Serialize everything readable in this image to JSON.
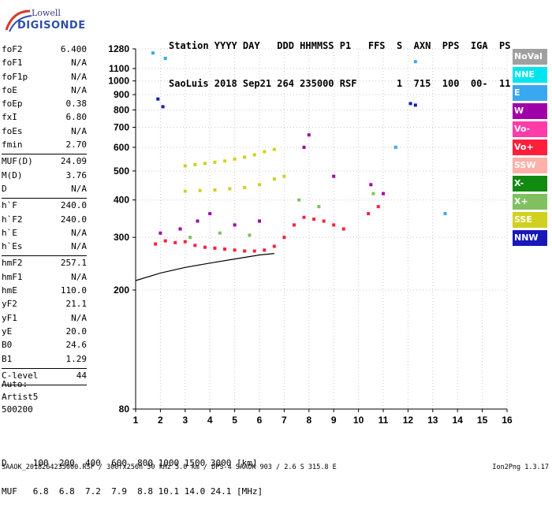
{
  "logo": {
    "line1": "Lowell",
    "line2": "DIGISONDE"
  },
  "header": {
    "line1": "Station YYYY DAY   DDD HHMMSS P1   FFS  S  AXN  PPS  IGA  PS",
    "line2": "SaoLuis 2018 Sep21 264 235000 RSF       1  715  100  00-  11"
  },
  "params": [
    {
      "k": "foF2",
      "v": "6.400"
    },
    {
      "k": "foF1",
      "v": "N/A"
    },
    {
      "k": "foF1p",
      "v": "N/A"
    },
    {
      "k": "foE",
      "v": "N/A"
    },
    {
      "k": "foEp",
      "v": "0.38"
    },
    {
      "k": "fxI",
      "v": "6.80"
    },
    {
      "k": "foEs",
      "v": "N/A"
    },
    {
      "k": "fmin",
      "v": "2.70"
    },
    {
      "sep": true
    },
    {
      "k": "MUF(D)",
      "v": "24.09"
    },
    {
      "k": "M(D)",
      "v": "3.76"
    },
    {
      "k": "D",
      "v": "N/A"
    },
    {
      "sep": true
    },
    {
      "k": "h`F",
      "v": "240.0"
    },
    {
      "k": "h`F2",
      "v": "240.0"
    },
    {
      "k": "h`E",
      "v": "N/A"
    },
    {
      "k": "h`Es",
      "v": "N/A"
    },
    {
      "sep": true
    },
    {
      "k": "hmF2",
      "v": "257.1"
    },
    {
      "k": "hmF1",
      "v": "N/A"
    },
    {
      "k": "hmE",
      "v": "110.0"
    },
    {
      "k": "yF2",
      "v": "21.1"
    },
    {
      "k": "yF1",
      "v": "N/A"
    },
    {
      "k": "yE",
      "v": "20.0"
    },
    {
      "k": "B0",
      "v": "24.6"
    },
    {
      "k": "B1",
      "v": "1.29"
    },
    {
      "sep": true
    },
    {
      "k": "C-level",
      "v": "44"
    },
    {
      "sep": true
    }
  ],
  "auto": [
    "Auto:",
    "Artist5",
    "500200"
  ],
  "legend": [
    {
      "label": "NoVal",
      "color": "#a0a0a0"
    },
    {
      "label": "NNE",
      "color": "#00e5ee"
    },
    {
      "label": "E",
      "color": "#3aa8f0"
    },
    {
      "label": "W",
      "color": "#a000a8"
    },
    {
      "label": "Vo-",
      "color": "#ff3ca8"
    },
    {
      "label": "Vo+",
      "color": "#ff1e3c"
    },
    {
      "label": "SSW",
      "color": "#ffb0a8"
    },
    {
      "label": "X-",
      "color": "#108a10"
    },
    {
      "label": "X+",
      "color": "#80c060"
    },
    {
      "label": "SSE",
      "color": "#d0d020"
    },
    {
      "label": "NNW",
      "color": "#1818b8"
    }
  ],
  "bottom": {
    "line1": "D     100  200  400  600  800 1000 1500 3000 [km]",
    "line2": "MUF   6.8  6.8  7.2  7.9  8.8 10.1 14.0 24.1 [MHz]"
  },
  "footer": "SAAOK_2018264235000.RSF / 300fx256h 50 kHz 5.0 km / DPS-4 SAAOK 903 / 2.6 S 315.8 E",
  "version": "Ion2Png 1.3.17",
  "chart_data": {
    "type": "scatter",
    "title": "",
    "xlabel": "",
    "ylabel": "",
    "xlim": [
      1,
      16
    ],
    "ylim": [
      80,
      1280
    ],
    "y_scale": "log",
    "x_ticks": [
      1,
      2,
      3,
      4,
      5,
      6,
      7,
      8,
      9,
      10,
      11,
      12,
      13,
      14,
      15,
      16
    ],
    "y_ticks": [
      80,
      200,
      300,
      400,
      500,
      600,
      700,
      800,
      900,
      1000,
      1100,
      1280
    ],
    "grid": true,
    "legend": "right",
    "series": [
      {
        "name": "Vo+",
        "points": [
          [
            1.8,
            285
          ],
          [
            2.2,
            292
          ],
          [
            2.6,
            288
          ],
          [
            3.0,
            290
          ],
          [
            3.4,
            282
          ],
          [
            3.8,
            278
          ],
          [
            4.2,
            276
          ],
          [
            4.6,
            274
          ],
          [
            5.0,
            272
          ],
          [
            5.4,
            270
          ],
          [
            5.8,
            270
          ],
          [
            6.2,
            272
          ],
          [
            6.6,
            280
          ],
          [
            7.0,
            300
          ],
          [
            7.4,
            330
          ],
          [
            7.8,
            350
          ],
          [
            8.2,
            345
          ],
          [
            8.6,
            340
          ],
          [
            9.0,
            330
          ],
          [
            9.4,
            320
          ],
          [
            10.4,
            360
          ],
          [
            10.8,
            380
          ]
        ]
      },
      {
        "name": "SSE",
        "points": [
          [
            3.0,
            520
          ],
          [
            3.4,
            525
          ],
          [
            3.8,
            530
          ],
          [
            4.2,
            535
          ],
          [
            4.6,
            540
          ],
          [
            5.0,
            548
          ],
          [
            5.4,
            556
          ],
          [
            5.8,
            566
          ],
          [
            6.2,
            580
          ],
          [
            6.6,
            590
          ],
          [
            3.0,
            428
          ],
          [
            3.6,
            430
          ],
          [
            4.2,
            432
          ],
          [
            4.8,
            436
          ],
          [
            5.4,
            440
          ],
          [
            6.0,
            450
          ],
          [
            6.6,
            470
          ],
          [
            7.0,
            480
          ]
        ]
      },
      {
        "name": "W",
        "points": [
          [
            2.0,
            310
          ],
          [
            2.8,
            320
          ],
          [
            3.5,
            340
          ],
          [
            4.0,
            360
          ],
          [
            5.0,
            330
          ],
          [
            6.0,
            340
          ],
          [
            7.8,
            600
          ],
          [
            8.0,
            660
          ],
          [
            9.0,
            480
          ],
          [
            10.5,
            450
          ],
          [
            11.0,
            420
          ]
        ]
      },
      {
        "name": "E",
        "points": [
          [
            1.7,
            1240
          ],
          [
            2.2,
            1190
          ],
          [
            12.3,
            1160
          ],
          [
            11.5,
            600
          ],
          [
            13.5,
            360
          ]
        ]
      },
      {
        "name": "NNW",
        "points": [
          [
            1.9,
            870
          ],
          [
            2.1,
            820
          ],
          [
            12.1,
            840
          ],
          [
            12.3,
            830
          ]
        ]
      },
      {
        "name": "X+",
        "points": [
          [
            3.2,
            300
          ],
          [
            4.4,
            310
          ],
          [
            5.6,
            305
          ],
          [
            7.6,
            400
          ],
          [
            8.4,
            380
          ],
          [
            10.6,
            420
          ]
        ]
      }
    ],
    "lines": [
      {
        "name": "trace",
        "points": [
          [
            1,
            215
          ],
          [
            2,
            228
          ],
          [
            3,
            238
          ],
          [
            4,
            246
          ],
          [
            5,
            254
          ],
          [
            6,
            262
          ],
          [
            6.6,
            265
          ]
        ]
      }
    ]
  }
}
